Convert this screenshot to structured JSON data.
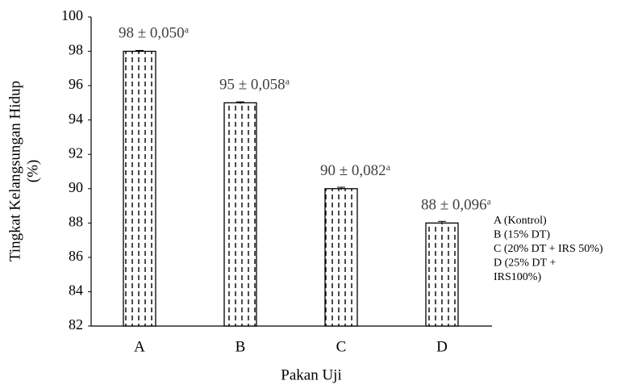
{
  "chart_data": {
    "type": "bar",
    "categories": [
      "A",
      "B",
      "C",
      "D"
    ],
    "values": [
      98,
      95,
      90,
      88
    ],
    "errors": [
      0.05,
      0.058,
      0.082,
      0.096
    ],
    "value_labels": [
      "98 ± 0,050",
      "95 ± 0,058",
      "90 ± 0,082",
      "88 ± 0,096"
    ],
    "value_label_superscripts": [
      "a",
      "a",
      "a",
      "a"
    ],
    "ylim": [
      82,
      100
    ],
    "yticks": [
      82,
      84,
      86,
      88,
      90,
      92,
      94,
      96,
      98,
      100
    ],
    "xlabel": "Pakan Uji",
    "ylabel": [
      "Tingkat Kelangsungan Hidup",
      "(%)"
    ],
    "legend": [
      "A (Kontrol)",
      "B (15% DT)",
      "C (20% DT + IRS 50%)",
      "D (25% DT +",
      "IRS100%)"
    ],
    "color": "#000000",
    "grid": false
  }
}
